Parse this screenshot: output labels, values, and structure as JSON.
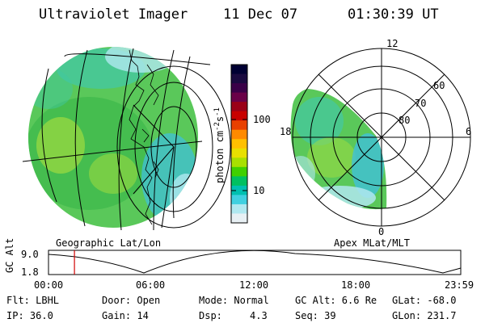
{
  "header": {
    "instrument": "Ultraviolet Imager",
    "date": "11 Dec 07",
    "time": "01:30:39 UT"
  },
  "left_panel": {
    "label": "Geographic Lat/Lon"
  },
  "right_panel": {
    "label": "Apex MLat/MLT",
    "mlt_labels": [
      "12",
      "18",
      "6",
      "0"
    ],
    "lat_labels": [
      "60",
      "70",
      "80"
    ]
  },
  "colorbar": {
    "unit": "photon cm",
    "unit_exp1": "-2",
    "unit_mid": "s",
    "unit_exp2": "-1",
    "ticks": [
      "100",
      "10"
    ],
    "colors": [
      "#000033",
      "#1a0a40",
      "#3a0048",
      "#6a0048",
      "#9a0018",
      "#c80000",
      "#e84000",
      "#ff8a00",
      "#ffc000",
      "#e8e000",
      "#a8e000",
      "#40d000",
      "#00c060",
      "#00c0b0",
      "#40d0e0",
      "#b0e8f0",
      "#e8f0f4"
    ]
  },
  "altitude_plot": {
    "ylabel": "GC Alt",
    "y_ticks": [
      "9.0",
      "1.8"
    ],
    "x_ticks": [
      "00:00",
      "06:00",
      "12:00",
      "18:00",
      "23:59"
    ],
    "marker_time_hours": 1.51
  },
  "status": {
    "flt": "Flt: LBHL",
    "ip": "IP: 36.0",
    "door": "Door: Open",
    "gain": "Gain: 14",
    "mode": "Mode: Normal",
    "dsp_label": "Dsp:",
    "dsp_value": "4.3",
    "gc_alt": "GC Alt: 6.6 Re",
    "seq": "Seq: 39",
    "glat": "GLat: -68.0",
    "glon": "GLon: 231.7"
  }
}
